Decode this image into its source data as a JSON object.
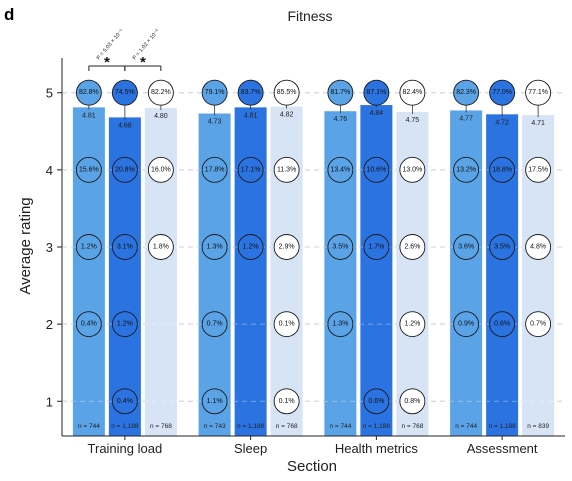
{
  "panel_letter": "d",
  "chart_data": {
    "type": "bar",
    "title": "Fitness",
    "xlabel": "Section",
    "ylabel": "Average rating",
    "ylim": [
      0.55,
      5.45
    ],
    "yticks": [
      1,
      2,
      3,
      4,
      5
    ],
    "grid": "horizontal-dashed",
    "colors": [
      "#5aa3e6",
      "#2b73e0",
      "#d6e4f6"
    ],
    "circle_fills": [
      "#5aa3e6",
      "#2b73e0",
      "#ffffff"
    ],
    "categories": [
      "Training load",
      "Sleep",
      "Health metrics",
      "Assessment"
    ],
    "groups": [
      {
        "bars": [
          {
            "mean": 4.81,
            "mean_label": "4.81",
            "n": "n = 744",
            "pct": {
              "5": "82.8%",
              "4": "15.6%",
              "3": "1.2%",
              "2": "0.4%"
            }
          },
          {
            "mean": 4.68,
            "mean_label": "4.68",
            "n": "n = 1,188",
            "pct": {
              "5": "74.5%",
              "4": "20.8%",
              "3": "3.1%",
              "2": "1.2%",
              "1": "0.4%"
            }
          },
          {
            "mean": 4.8,
            "mean_label": "4.80",
            "n": "n = 768",
            "pct": {
              "5": "82.2%",
              "4": "16.0%",
              "3": "1.8%"
            }
          }
        ]
      },
      {
        "bars": [
          {
            "mean": 4.73,
            "mean_label": "4.73",
            "n": "n = 743",
            "pct": {
              "5": "79.1%",
              "4": "17.8%",
              "3": "1.3%",
              "2": "0.7%",
              "1": "1.1%"
            }
          },
          {
            "mean": 4.81,
            "mean_label": "4.81",
            "n": "n = 1,188",
            "pct": {
              "5": "83.7%",
              "4": "17.1%",
              "3": "1.2%"
            }
          },
          {
            "mean": 4.82,
            "mean_label": "4.82",
            "n": "n = 768",
            "pct": {
              "5": "85.5%",
              "4": "11.3%",
              "3": "2.9%",
              "2": "0.1%",
              "1": "0.1%"
            }
          }
        ]
      },
      {
        "bars": [
          {
            "mean": 4.76,
            "mean_label": "4.76",
            "n": "n = 744",
            "pct": {
              "5": "81.7%",
              "4": "13.4%",
              "3": "3.5%",
              "2": "1.3%"
            }
          },
          {
            "mean": 4.84,
            "mean_label": "4.84",
            "n": "n = 1,188",
            "pct": {
              "5": "87.1%",
              "4": "10.6%",
              "3": "1.7%",
              "1": "0.6%"
            }
          },
          {
            "mean": 4.75,
            "mean_label": "4.75",
            "n": "n = 768",
            "pct": {
              "5": "82.4%",
              "4": "13.0%",
              "3": "2.6%",
              "2": "1.2%",
              "1": "0.8%"
            }
          }
        ]
      },
      {
        "bars": [
          {
            "mean": 4.77,
            "mean_label": "4.77",
            "n": "n = 744",
            "pct": {
              "5": "82.3%",
              "4": "13.2%",
              "3": "3.6%",
              "2": "0.9%"
            }
          },
          {
            "mean": 4.72,
            "mean_label": "4.72",
            "n": "n = 1,188",
            "pct": {
              "5": "77.0%",
              "4": "18.8%",
              "3": "3.5%",
              "2": "0.6%"
            }
          },
          {
            "mean": 4.71,
            "mean_label": "4.71",
            "n": "n = 839",
            "pct": {
              "5": "77.1%",
              "4": "17.5%",
              "3": "4.8%",
              "2": "0.7%"
            }
          }
        ]
      }
    ],
    "annotations": [
      {
        "group": 0,
        "from_bar": 0,
        "to_bar": 1,
        "p_text": "P = 5.03 × 10⁻⁵",
        "mark": "*"
      },
      {
        "group": 0,
        "from_bar": 1,
        "to_bar": 2,
        "p_text": "P = 1.02 × 10⁻²",
        "mark": "*"
      }
    ]
  }
}
